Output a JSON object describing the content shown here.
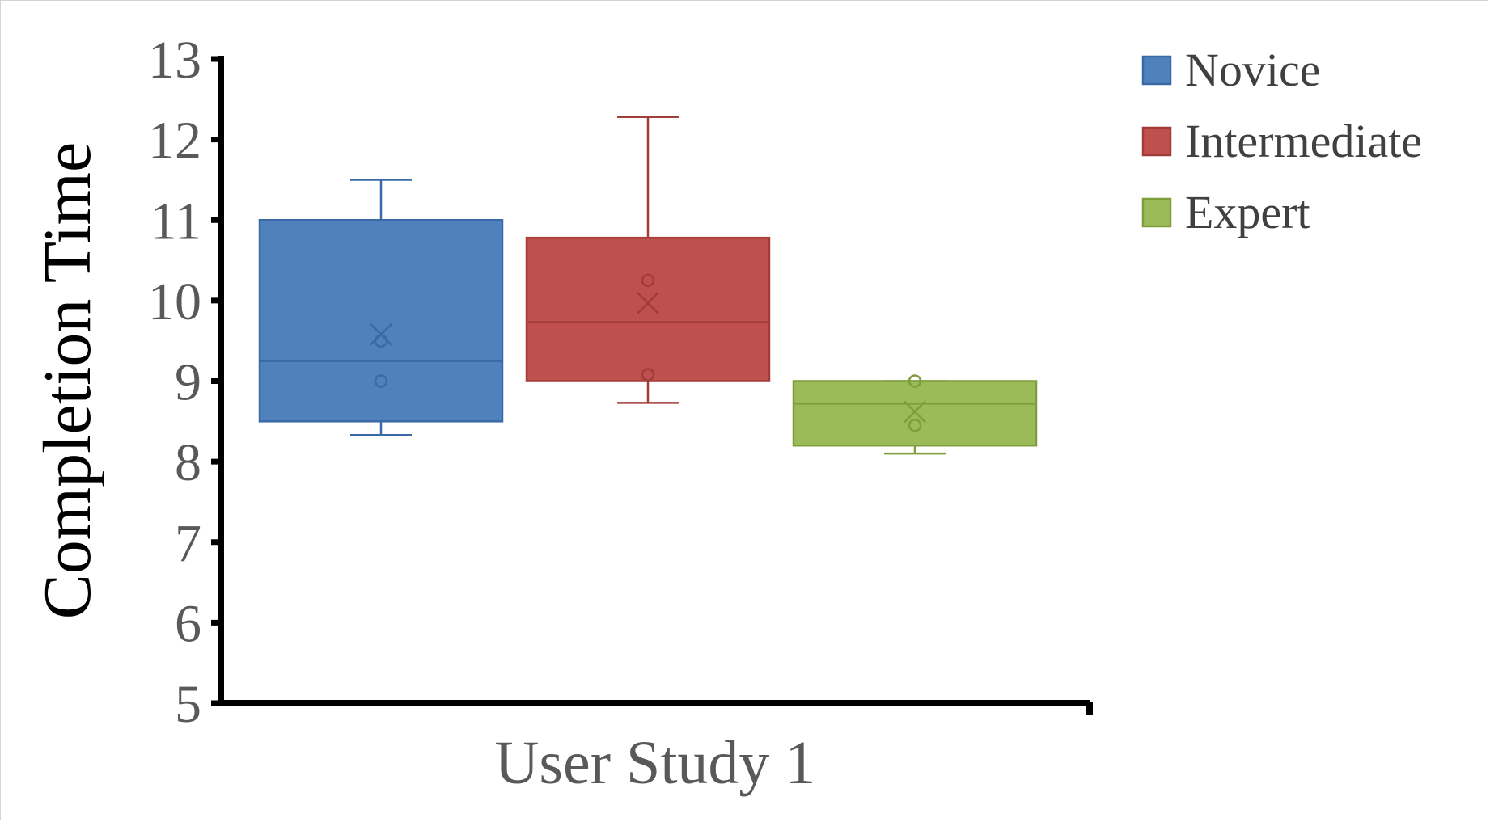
{
  "chart_data": {
    "type": "box",
    "ylabel": "Completion Time",
    "xlabel": "",
    "categories": [
      "User Study 1"
    ],
    "ylim": [
      5,
      13
    ],
    "yticks": [
      5,
      6,
      7,
      8,
      9,
      10,
      11,
      12,
      13
    ],
    "grid": false,
    "legend_position": "top-right",
    "series": [
      {
        "name": "Novice",
        "color": "#4F81BD",
        "stroke": "#3A6AA6",
        "whisker_low": 8.33,
        "q1": 8.5,
        "median": 9.25,
        "q3": 11.0,
        "whisker_high": 11.5,
        "mean": 9.58,
        "points": [
          9.0,
          9.5
        ]
      },
      {
        "name": "Intermediate",
        "color": "#C0504D",
        "stroke": "#A13C39",
        "whisker_low": 8.73,
        "q1": 9.0,
        "median": 9.73,
        "q3": 10.78,
        "whisker_high": 12.28,
        "mean": 9.97,
        "points": [
          9.08,
          10.25
        ]
      },
      {
        "name": "Expert",
        "color": "#9BBB59",
        "stroke": "#7E9E3C",
        "whisker_low": 8.1,
        "q1": 8.2,
        "median": 8.72,
        "q3": 9.0,
        "whisker_high": 9.0,
        "mean": 8.62,
        "points": [
          8.45,
          9.0
        ]
      }
    ]
  }
}
